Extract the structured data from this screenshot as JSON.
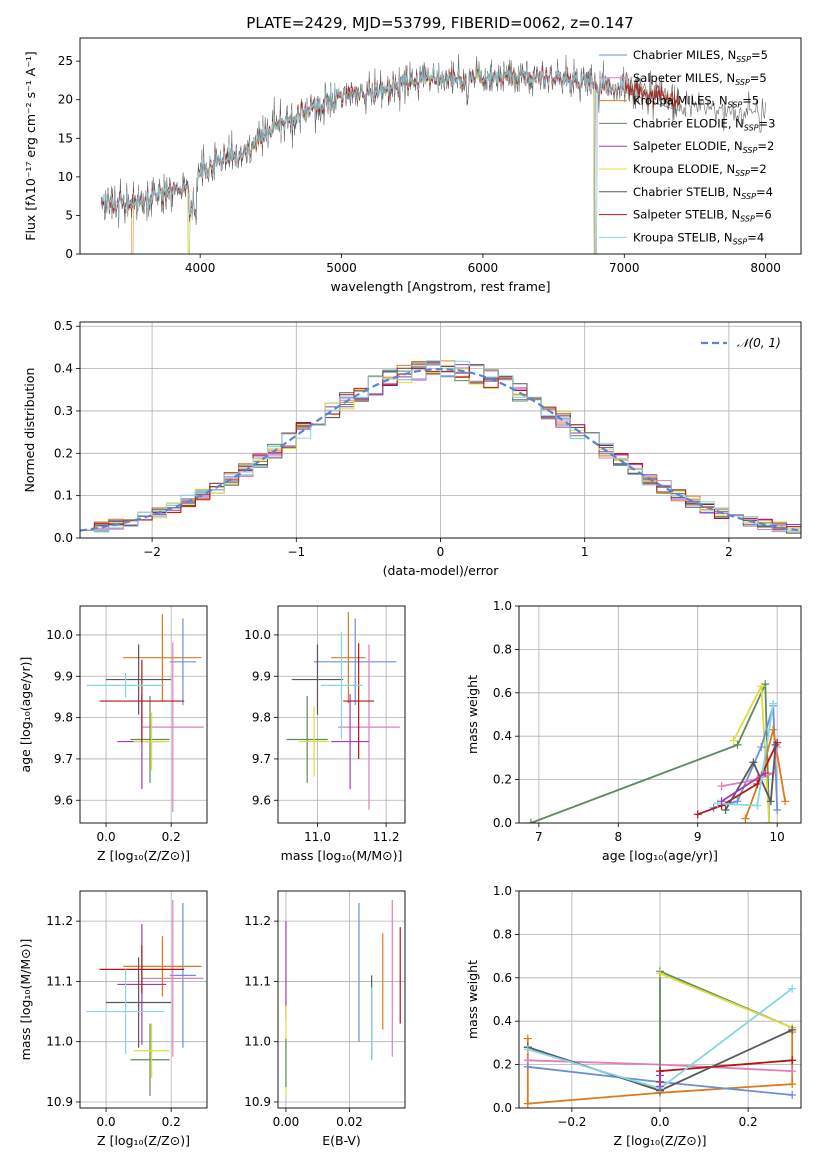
{
  "title": "PLATE=2429, MJD=53799, FIBERID=0062, z=0.147",
  "colors": {
    "CMILES": "#6a8fd8",
    "SMILES": "#e27fb8",
    "KMILES": "#dd7a1e",
    "CELODIE": "#5e8a5e",
    "SELODIE": "#a23ab8",
    "KELODIE": "#dede3a",
    "CSTELIB": "#585858",
    "SSTELIB": "#b41616",
    "KSTELIB": "#86d6e6",
    "gauss": "#5b84d2"
  },
  "chart_data": [
    {
      "id": "spectrum",
      "type": "line",
      "xlabel": "wavelength [Angstrom, rest frame]",
      "ylabel": "Flux [fλ10⁻¹⁷ erg cm⁻² s⁻¹ A⁻¹]",
      "xlim": [
        3150,
        8250
      ],
      "ylim": [
        0,
        28
      ],
      "xticks": [
        4000,
        5000,
        6000,
        7000,
        8000
      ],
      "yticks": [
        0,
        5,
        10,
        15,
        20,
        25
      ],
      "legend_position": "top-right",
      "continuum": [
        [
          3300,
          7.2
        ],
        [
          3400,
          6.6
        ],
        [
          3500,
          6.3
        ],
        [
          3600,
          6.9
        ],
        [
          3700,
          7.6
        ],
        [
          3800,
          8.3
        ],
        [
          3900,
          8.8
        ],
        [
          3950,
          8.0
        ],
        [
          4000,
          10.5
        ],
        [
          4100,
          11.8
        ],
        [
          4200,
          12.6
        ],
        [
          4300,
          13.0
        ],
        [
          4400,
          14.5
        ],
        [
          4500,
          16.0
        ],
        [
          4600,
          17.0
        ],
        [
          4700,
          18.0
        ],
        [
          4800,
          19.2
        ],
        [
          4900,
          20.0
        ],
        [
          5000,
          20.8
        ],
        [
          5100,
          20.9
        ],
        [
          5200,
          20.6
        ],
        [
          5300,
          21.3
        ],
        [
          5400,
          22.0
        ],
        [
          5500,
          22.4
        ],
        [
          5600,
          22.6
        ],
        [
          5700,
          22.9
        ],
        [
          5800,
          23.0
        ],
        [
          5900,
          22.6
        ],
        [
          6000,
          22.8
        ],
        [
          6200,
          23.2
        ],
        [
          6400,
          23.0
        ],
        [
          6600,
          22.6
        ],
        [
          6800,
          22.0
        ],
        [
          7000,
          21.3
        ],
        [
          7200,
          20.7
        ],
        [
          7400,
          19.9
        ],
        [
          7600,
          18.9
        ],
        [
          7800,
          18.2
        ],
        [
          8000,
          18.0
        ]
      ],
      "series": [
        {
          "name": "Chabrier MILES, N_SSP=5",
          "color_key": "CMILES",
          "x_range": [
            3300,
            7000
          ],
          "drops": [
            6800
          ]
        },
        {
          "name": "Salpeter MILES, N_SSP=5",
          "color_key": "SMILES",
          "x_range": [
            3300,
            7000
          ],
          "drops": [
            6800
          ]
        },
        {
          "name": "Kroupa MILES, N_SSP=5",
          "color_key": "KMILES",
          "x_range": [
            3300,
            7400
          ],
          "drops": [
            3520,
            7420
          ]
        },
        {
          "name": "Chabrier ELODIE, N_SSP=3",
          "color_key": "CELODIE",
          "x_range": [
            3300,
            6800
          ],
          "drops": [
            3920,
            6790
          ]
        },
        {
          "name": "Salpeter ELODIE, N_SSP=2",
          "color_key": "SELODIE",
          "x_range": [
            3300,
            6800
          ],
          "drops": [
            6790
          ]
        },
        {
          "name": "Kroupa ELODIE, N_SSP=2",
          "color_key": "KELODIE",
          "x_range": [
            3300,
            6800
          ],
          "drops": [
            3920,
            6790
          ]
        },
        {
          "name": "Chabrier STELIB, N_SSP=4",
          "color_key": "CSTELIB",
          "x_range": [
            3300,
            7380
          ],
          "drops": []
        },
        {
          "name": "Salpeter STELIB, N_SSP=6",
          "color_key": "SSTELIB",
          "x_range": [
            3300,
            7380
          ],
          "drops": [
            7420
          ]
        },
        {
          "name": "Kroupa STELIB, N_SSP=4",
          "color_key": "KSTELIB",
          "x_range": [
            3300,
            7000
          ],
          "drops": [
            6800
          ]
        }
      ]
    },
    {
      "id": "residuals",
      "type": "histogram",
      "xlabel": "(data-model)/error",
      "ylabel": "Normed distribution",
      "xlim": [
        -2.5,
        2.5
      ],
      "ylim": [
        0,
        0.51
      ],
      "xticks": [
        -2,
        -1,
        0,
        1,
        2
      ],
      "yticks": [
        0.0,
        0.1,
        0.2,
        0.3,
        0.4,
        0.5
      ],
      "grid": true,
      "legend_position": "top-right",
      "legend": "𝒩(0, 1)",
      "bin_width": 0.1
    },
    {
      "id": "z-age",
      "type": "scatter",
      "xlabel": "Z [log₁₀(Z/Z⊙)]",
      "ylabel": "age  [log₁₀(age/yr)]",
      "xlim": [
        -0.08,
        0.31
      ],
      "ylim": [
        9.545,
        10.07
      ],
      "xticks": [
        0.0,
        0.2
      ],
      "yticks": [
        9.6,
        9.7,
        9.8,
        9.9,
        10.0
      ],
      "grid": true,
      "points": [
        {
          "key": "CMILES",
          "x": 0.236,
          "xerr": 0.04,
          "y": 9.935,
          "yerr": 0.105
        },
        {
          "key": "SMILES",
          "x": 0.205,
          "xerr": 0.095,
          "y": 9.777,
          "yerr": 0.205
        },
        {
          "key": "KMILES",
          "x": 0.173,
          "xerr": 0.12,
          "y": 9.945,
          "yerr": 0.105
        },
        {
          "key": "CELODIE",
          "x": 0.135,
          "xerr": 0.06,
          "y": 9.747,
          "yerr": 0.105
        },
        {
          "key": "SELODIE",
          "x": 0.11,
          "xerr": 0.075,
          "y": 9.742,
          "yerr": 0.115
        },
        {
          "key": "KELODIE",
          "x": 0.14,
          "xerr": 0.055,
          "y": 9.742,
          "yerr": 0.07
        },
        {
          "key": "CSTELIB",
          "x": 0.1,
          "xerr": 0.1,
          "y": 9.892,
          "yerr": 0.085
        },
        {
          "key": "SSTELIB",
          "x": 0.11,
          "xerr": 0.13,
          "y": 9.84,
          "yerr": 0.1
        },
        {
          "key": "KSTELIB",
          "x": 0.06,
          "xerr": 0.12,
          "y": 9.878,
          "yerr": 0.03
        }
      ]
    },
    {
      "id": "mass-age",
      "type": "scatter",
      "xlabel": "mass [log₁₀(M/M⊙)]",
      "ylabel": "",
      "xlim": [
        10.885,
        11.255
      ],
      "ylim": [
        9.545,
        10.07
      ],
      "xticks": [
        11.0,
        11.2
      ],
      "yticks": [
        9.6,
        9.7,
        9.8,
        9.9,
        10.0
      ],
      "grid": true,
      "points": [
        {
          "key": "CMILES",
          "x": 11.11,
          "xerr": 0.12,
          "y": 9.935,
          "yerr": 0.105
        },
        {
          "key": "SMILES",
          "x": 11.15,
          "xerr": 0.09,
          "y": 9.777,
          "yerr": 0.2
        },
        {
          "key": "KMILES",
          "x": 11.09,
          "xerr": 0.05,
          "y": 9.945,
          "yerr": 0.11
        },
        {
          "key": "CELODIE",
          "x": 10.97,
          "xerr": 0.06,
          "y": 9.747,
          "yerr": 0.105
        },
        {
          "key": "SELODIE",
          "x": 11.095,
          "xerr": 0.055,
          "y": 9.742,
          "yerr": 0.115
        },
        {
          "key": "KELODIE",
          "x": 10.99,
          "xerr": 0.045,
          "y": 9.742,
          "yerr": 0.085
        },
        {
          "key": "CSTELIB",
          "x": 11.0,
          "xerr": 0.075,
          "y": 9.892,
          "yerr": 0.085
        },
        {
          "key": "SSTELIB",
          "x": 11.12,
          "xerr": 0.045,
          "y": 9.84,
          "yerr": 0.14
        },
        {
          "key": "KSTELIB",
          "x": 11.07,
          "xerr": 0.06,
          "y": 9.878,
          "yerr": 0.13
        }
      ]
    },
    {
      "id": "age-weight",
      "type": "line",
      "xlabel": "age  [log₁₀(age/yr)]",
      "ylabel": "mass weight",
      "xlim": [
        6.75,
        10.3
      ],
      "ylim": [
        0,
        1.0
      ],
      "xticks": [
        7,
        8,
        9,
        10
      ],
      "yticks": [
        0.0,
        0.2,
        0.4,
        0.6,
        0.8,
        1.0
      ],
      "grid": true,
      "series": [
        {
          "key": "CELODIE",
          "points": [
            [
              6.9,
              0.0
            ],
            [
              9.5,
              0.36
            ],
            [
              9.85,
              0.64
            ],
            [
              9.9,
              0.0
            ]
          ]
        },
        {
          "key": "KELODIE",
          "points": [
            [
              9.45,
              0.38
            ],
            [
              9.8,
              0.63
            ],
            [
              9.9,
              0.0
            ]
          ]
        },
        {
          "key": "CMILES",
          "points": [
            [
              9.2,
              0.07
            ],
            [
              9.5,
              0.1
            ],
            [
              9.8,
              0.35
            ],
            [
              9.95,
              0.54
            ],
            [
              10.0,
              0.06
            ]
          ]
        },
        {
          "key": "KMILES",
          "points": [
            [
              9.6,
              0.02
            ],
            [
              9.8,
              0.22
            ],
            [
              9.95,
              0.43
            ],
            [
              10.1,
              0.1
            ]
          ]
        },
        {
          "key": "SMILES",
          "points": [
            [
              9.3,
              0.17
            ],
            [
              9.75,
              0.2
            ],
            [
              9.95,
              0.23
            ],
            [
              10.0,
              0.35
            ]
          ]
        },
        {
          "key": "SSTELIB",
          "points": [
            [
              9.0,
              0.04
            ],
            [
              9.3,
              0.08
            ],
            [
              9.75,
              0.18
            ],
            [
              10.0,
              0.37
            ]
          ]
        },
        {
          "key": "CSTELIB",
          "points": [
            [
              9.35,
              0.06
            ],
            [
              9.7,
              0.28
            ],
            [
              9.92,
              0.1
            ],
            [
              9.98,
              0.36
            ]
          ]
        },
        {
          "key": "KSTELIB",
          "points": [
            [
              9.25,
              0.09
            ],
            [
              9.75,
              0.08
            ],
            [
              9.95,
              0.55
            ]
          ]
        },
        {
          "key": "SELODIE",
          "points": [
            [
              9.3,
              0.1
            ],
            [
              9.85,
              0.23
            ]
          ]
        }
      ]
    },
    {
      "id": "z-mass",
      "type": "scatter",
      "xlabel": "Z [log₁₀(Z/Z⊙)]",
      "ylabel": "mass [log₁₀(M/M⊙)]",
      "xlim": [
        -0.08,
        0.31
      ],
      "ylim": [
        10.89,
        11.25
      ],
      "xticks": [
        0.0,
        0.2
      ],
      "yticks": [
        10.9,
        11.0,
        11.1,
        11.2
      ],
      "grid": true,
      "points": [
        {
          "key": "CMILES",
          "x": 0.236,
          "xerr": 0.04,
          "y": 11.11,
          "yerr": 0.12
        },
        {
          "key": "SMILES",
          "x": 0.205,
          "xerr": 0.095,
          "y": 11.105,
          "yerr": 0.13
        },
        {
          "key": "KMILES",
          "x": 0.173,
          "xerr": 0.12,
          "y": 11.125,
          "yerr": 0.05
        },
        {
          "key": "CELODIE",
          "x": 0.135,
          "xerr": 0.06,
          "y": 10.97,
          "yerr": 0.06
        },
        {
          "key": "SELODIE",
          "x": 0.11,
          "xerr": 0.075,
          "y": 11.095,
          "yerr": 0.1
        },
        {
          "key": "KELODIE",
          "x": 0.14,
          "xerr": 0.055,
          "y": 10.985,
          "yerr": 0.045
        },
        {
          "key": "CSTELIB",
          "x": 0.1,
          "xerr": 0.1,
          "y": 11.065,
          "yerr": 0.075
        },
        {
          "key": "SSTELIB",
          "x": 0.11,
          "xerr": 0.13,
          "y": 11.12,
          "yerr": 0.04
        },
        {
          "key": "KSTELIB",
          "x": 0.06,
          "xerr": 0.12,
          "y": 11.05,
          "yerr": 0.07
        }
      ]
    },
    {
      "id": "ebv-mass",
      "type": "scatter",
      "xlabel": "E(B-V)",
      "ylabel": "",
      "xlim": [
        -0.0025,
        0.0375
      ],
      "ylim": [
        10.89,
        11.25
      ],
      "xticks": [
        0.0,
        0.02
      ],
      "yticks": [
        10.9,
        11.0,
        11.1,
        11.2
      ],
      "grid": true,
      "points": [
        {
          "key": "SELODIE",
          "x": 0.0,
          "y": 11.12,
          "yerr": 0.08
        },
        {
          "key": "KELODIE",
          "x": 0.0,
          "y": 10.985,
          "yerr": 0.075
        },
        {
          "key": "CELODIE",
          "x": 0.0,
          "y": 10.965,
          "yerr": 0.04
        },
        {
          "key": "CMILES",
          "x": 0.023,
          "y": 11.115,
          "yerr": 0.115
        },
        {
          "key": "SMILES",
          "x": 0.0335,
          "y": 11.105,
          "yerr": 0.13
        },
        {
          "key": "KMILES",
          "x": 0.0305,
          "y": 11.1,
          "yerr": 0.08
        },
        {
          "key": "CSTELIB",
          "x": 0.027,
          "y": 11.04,
          "yerr": 0.07
        },
        {
          "key": "KSTELIB",
          "x": 0.027,
          "y": 11.03,
          "yerr": 0.06
        },
        {
          "key": "SSTELIB",
          "x": 0.036,
          "y": 11.11,
          "yerr": 0.08
        }
      ]
    },
    {
      "id": "z-weight",
      "type": "line",
      "xlabel": "Z [log₁₀(Z/Z⊙)]",
      "ylabel": "mass weight",
      "xlim": [
        -0.32,
        0.32
      ],
      "ylim": [
        0,
        1.0
      ],
      "xticks": [
        -0.2,
        0.0,
        0.2
      ],
      "yticks": [
        0.0,
        0.2,
        0.4,
        0.6,
        0.8,
        1.0
      ],
      "grid": true,
      "series": [
        {
          "key": "KMILES",
          "points": [
            [
              -0.3,
              0.32
            ],
            [
              -0.3,
              0.02
            ],
            [
              0.0,
              0.07
            ],
            [
              0.3,
              0.11
            ],
            [
              0.3,
              0.35
            ]
          ]
        },
        {
          "key": "SMILES",
          "points": [
            [
              -0.3,
              0.22
            ],
            [
              0.0,
              0.2
            ],
            [
              0.3,
              0.17
            ]
          ]
        },
        {
          "key": "CMILES",
          "points": [
            [
              -0.3,
              0.19
            ],
            [
              0.0,
              0.12
            ],
            [
              0.3,
              0.06
            ]
          ]
        },
        {
          "key": "CELODIE",
          "points": [
            [
              -0.3,
              0.28
            ],
            [
              0.0,
              0.08
            ],
            [
              0.0,
              0.63
            ],
            [
              0.3,
              0.37
            ]
          ]
        },
        {
          "key": "KELODIE",
          "points": [
            [
              0.0,
              0.62
            ],
            [
              0.3,
              0.37
            ]
          ]
        },
        {
          "key": "SSTELIB",
          "points": [
            [
              0.0,
              0.12
            ],
            [
              0.0,
              0.17
            ],
            [
              0.3,
              0.22
            ]
          ]
        },
        {
          "key": "CSTELIB",
          "points": [
            [
              -0.3,
              0.28
            ],
            [
              0.0,
              0.08
            ],
            [
              0.3,
              0.36
            ]
          ]
        },
        {
          "key": "KSTELIB",
          "points": [
            [
              -0.3,
              0.27
            ],
            [
              0.0,
              0.09
            ],
            [
              0.3,
              0.55
            ]
          ]
        },
        {
          "key": "SELODIE",
          "points": [
            [
              0.0,
              0.1
            ],
            [
              0.0,
              0.15
            ]
          ]
        }
      ]
    }
  ]
}
